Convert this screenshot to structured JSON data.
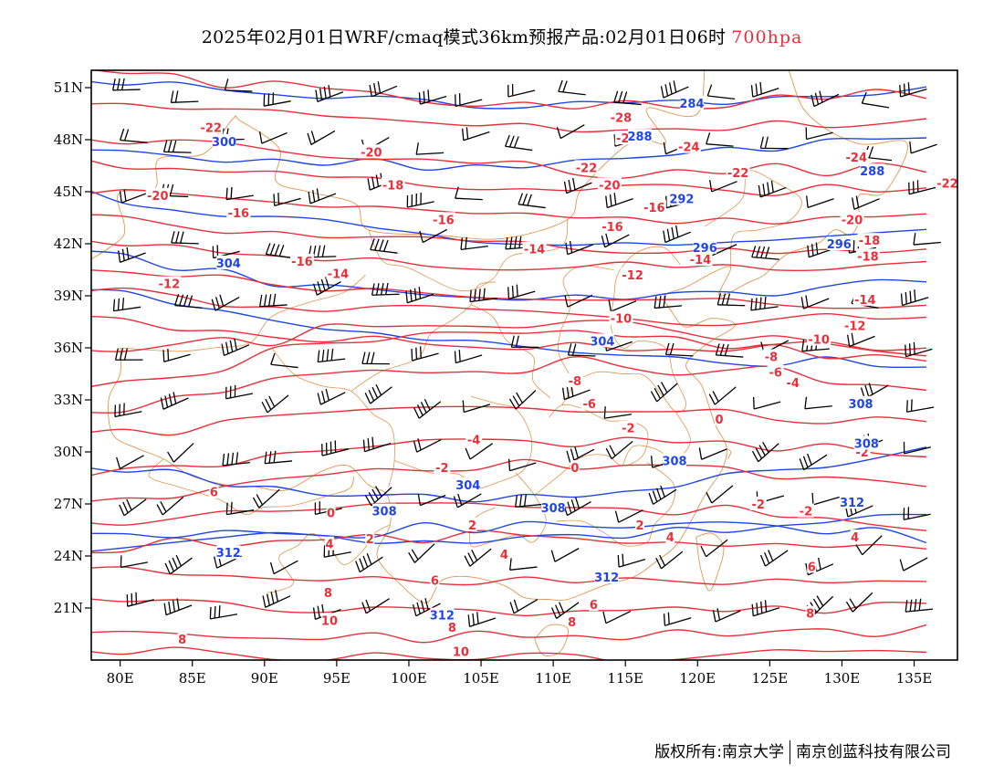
{
  "header": {
    "title": "2025年02月01日WRF/cmaq模式36km预报产品:02月01日06时",
    "level": "700hpa"
  },
  "map": {
    "lon_range": [
      78,
      138
    ],
    "lat_range": [
      18,
      52
    ],
    "lon_ticks": [
      "80E",
      "85E",
      "90E",
      "95E",
      "100E",
      "105E",
      "110E",
      "115E",
      "120E",
      "125E",
      "130E",
      "135E"
    ],
    "lat_ticks": [
      "21N",
      "24N",
      "27N",
      "30N",
      "33N",
      "36N",
      "39N",
      "42N",
      "45N",
      "48N",
      "51N"
    ],
    "colors": {
      "temperature": "#e8303a",
      "geopotential": "#2146e6",
      "boundary": "#e09650",
      "wind": "#000000"
    },
    "temperature_labels": [
      {
        "text": "-28",
        "lon": 114.7,
        "lat": 49.3
      },
      {
        "text": "-26",
        "lon": 115.1,
        "lat": 48.1
      },
      {
        "text": "-24",
        "lon": 119.4,
        "lat": 47.6
      },
      {
        "text": "-24",
        "lon": 131.0,
        "lat": 47.0
      },
      {
        "text": "-22",
        "lon": 86.3,
        "lat": 48.7
      },
      {
        "text": "-22",
        "lon": 112.3,
        "lat": 46.4
      },
      {
        "text": "-22",
        "lon": 122.8,
        "lat": 46.1
      },
      {
        "text": "-22",
        "lon": 137.3,
        "lat": 45.5
      },
      {
        "text": "-20",
        "lon": 97.4,
        "lat": 47.3
      },
      {
        "text": "-20",
        "lon": 82.6,
        "lat": 44.8
      },
      {
        "text": "-20",
        "lon": 113.9,
        "lat": 45.4
      },
      {
        "text": "-20",
        "lon": 130.7,
        "lat": 43.4
      },
      {
        "text": "-18",
        "lon": 98.9,
        "lat": 45.4
      },
      {
        "text": "-18",
        "lon": 131.9,
        "lat": 42.2
      },
      {
        "text": "-18",
        "lon": 131.8,
        "lat": 41.3
      },
      {
        "text": "-16",
        "lon": 88.2,
        "lat": 43.8
      },
      {
        "text": "-16",
        "lon": 92.6,
        "lat": 41.0
      },
      {
        "text": "-16",
        "lon": 102.4,
        "lat": 43.4
      },
      {
        "text": "-16",
        "lon": 114.1,
        "lat": 43.0
      },
      {
        "text": "-16",
        "lon": 117.0,
        "lat": 44.1
      },
      {
        "text": "-14",
        "lon": 95.1,
        "lat": 40.3
      },
      {
        "text": "-14",
        "lon": 108.7,
        "lat": 41.7
      },
      {
        "text": "-14",
        "lon": 120.2,
        "lat": 41.1
      },
      {
        "text": "-14",
        "lon": 131.6,
        "lat": 38.8
      },
      {
        "text": "-12",
        "lon": 83.4,
        "lat": 39.7
      },
      {
        "text": "-12",
        "lon": 115.5,
        "lat": 40.2
      },
      {
        "text": "-12",
        "lon": 130.9,
        "lat": 37.3
      },
      {
        "text": "-10",
        "lon": 114.7,
        "lat": 37.7
      },
      {
        "text": "-10",
        "lon": 128.4,
        "lat": 36.5
      },
      {
        "text": "-8",
        "lon": 125.1,
        "lat": 35.5
      },
      {
        "text": "-8",
        "lon": 111.5,
        "lat": 34.1
      },
      {
        "text": "-6",
        "lon": 125.4,
        "lat": 34.6
      },
      {
        "text": "-6",
        "lon": 112.5,
        "lat": 32.8
      },
      {
        "text": "-4",
        "lon": 126.6,
        "lat": 34.0
      },
      {
        "text": "-4",
        "lon": 104.5,
        "lat": 30.7
      },
      {
        "text": "-2",
        "lon": 102.3,
        "lat": 29.1
      },
      {
        "text": "-2",
        "lon": 115.2,
        "lat": 31.4
      },
      {
        "text": "-2",
        "lon": 131.4,
        "lat": 30.0
      },
      {
        "text": "-2",
        "lon": 124.2,
        "lat": 27.0
      },
      {
        "text": "-2",
        "lon": 127.5,
        "lat": 26.6
      },
      {
        "text": "0",
        "lon": 121.5,
        "lat": 31.9
      },
      {
        "text": "0",
        "lon": 111.5,
        "lat": 29.1
      },
      {
        "text": "0",
        "lon": 94.6,
        "lat": 26.5
      },
      {
        "text": "2",
        "lon": 116.0,
        "lat": 25.8
      },
      {
        "text": "2",
        "lon": 104.4,
        "lat": 25.8
      },
      {
        "text": "2",
        "lon": 97.3,
        "lat": 25.0
      },
      {
        "text": "4",
        "lon": 94.5,
        "lat": 24.7
      },
      {
        "text": "4",
        "lon": 106.6,
        "lat": 24.1
      },
      {
        "text": "4",
        "lon": 118.1,
        "lat": 25.1
      },
      {
        "text": "4",
        "lon": 130.9,
        "lat": 25.1
      },
      {
        "text": "6",
        "lon": 86.5,
        "lat": 27.7
      },
      {
        "text": "6",
        "lon": 101.8,
        "lat": 22.6
      },
      {
        "text": "6",
        "lon": 112.8,
        "lat": 21.2
      },
      {
        "text": "6",
        "lon": 127.9,
        "lat": 23.4
      },
      {
        "text": "8",
        "lon": 94.4,
        "lat": 21.9
      },
      {
        "text": "8",
        "lon": 84.3,
        "lat": 19.2
      },
      {
        "text": "8",
        "lon": 111.3,
        "lat": 20.2
      },
      {
        "text": "8",
        "lon": 103.0,
        "lat": 19.9
      },
      {
        "text": "8",
        "lon": 127.8,
        "lat": 20.7
      },
      {
        "text": "10",
        "lon": 94.5,
        "lat": 20.3
      },
      {
        "text": "10",
        "lon": 103.6,
        "lat": 18.5
      }
    ],
    "height_labels": [
      {
        "text": "284",
        "lon": 119.6,
        "lat": 50.1
      },
      {
        "text": "288",
        "lon": 116.0,
        "lat": 48.2
      },
      {
        "text": "288",
        "lon": 132.1,
        "lat": 46.2
      },
      {
        "text": "292",
        "lon": 118.9,
        "lat": 44.6
      },
      {
        "text": "296",
        "lon": 120.5,
        "lat": 41.8
      },
      {
        "text": "296",
        "lon": 129.8,
        "lat": 42.0
      },
      {
        "text": "300",
        "lon": 87.2,
        "lat": 47.9
      },
      {
        "text": "304",
        "lon": 87.5,
        "lat": 40.9
      },
      {
        "text": "304",
        "lon": 113.4,
        "lat": 36.4
      },
      {
        "text": "304",
        "lon": 104.1,
        "lat": 28.1
      },
      {
        "text": "308",
        "lon": 98.3,
        "lat": 26.6
      },
      {
        "text": "308",
        "lon": 110.0,
        "lat": 26.8
      },
      {
        "text": "308",
        "lon": 118.4,
        "lat": 29.5
      },
      {
        "text": "308",
        "lon": 131.3,
        "lat": 32.8
      },
      {
        "text": "308",
        "lon": 131.7,
        "lat": 30.5
      },
      {
        "text": "312",
        "lon": 87.5,
        "lat": 24.2
      },
      {
        "text": "312",
        "lon": 130.7,
        "lat": 27.1
      },
      {
        "text": "312",
        "lon": 113.7,
        "lat": 22.8
      },
      {
        "text": "312",
        "lon": 102.3,
        "lat": 20.6
      }
    ]
  },
  "footer": {
    "left": "版权所有:南京大学",
    "right": "南京创蓝科技有限公司"
  }
}
